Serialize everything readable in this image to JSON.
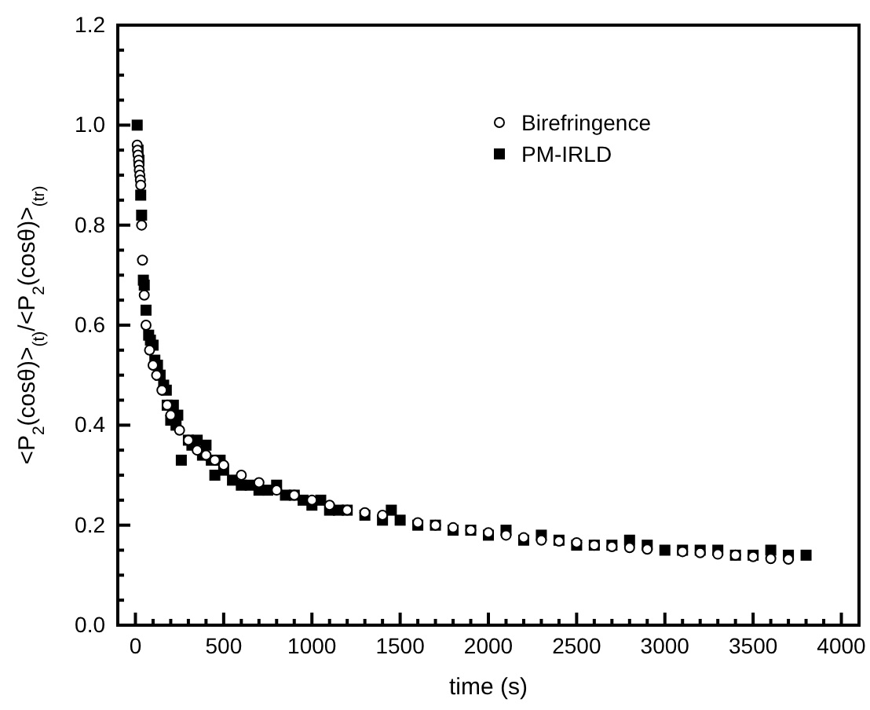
{
  "chart_data": {
    "type": "scatter",
    "xlabel": "time (s)",
    "ylabel": "<P$_{2}$(cosθ)>$_{(t)}$/<P$_{2}$(cosθ)>$_{(tr)}$",
    "xlim": [
      -100,
      4100
    ],
    "ylim": [
      0,
      1.2
    ],
    "xticks": [
      0,
      {
        "value": 100,
        "label": null
      },
      {
        "value": 200,
        "label": null
      },
      {
        "value": 300,
        "label": null
      },
      {
        "value": 400,
        "label": null
      },
      500,
      {
        "value": 600,
        "label": null
      },
      {
        "value": 700,
        "label": null
      },
      {
        "value": 800,
        "label": null
      },
      {
        "value": 900,
        "label": null
      },
      1000,
      {
        "value": 1100,
        "label": null
      },
      {
        "value": 1200,
        "label": null
      },
      {
        "value": 1300,
        "label": null
      },
      {
        "value": 1400,
        "label": null
      },
      1500,
      {
        "value": 1600,
        "label": null
      },
      {
        "value": 1700,
        "label": null
      },
      {
        "value": 1800,
        "label": null
      },
      {
        "value": 1900,
        "label": null
      },
      2000,
      {
        "value": 2100,
        "label": null
      },
      {
        "value": 2200,
        "label": null
      },
      {
        "value": 2300,
        "label": null
      },
      {
        "value": 2400,
        "label": null
      },
      2500,
      {
        "value": 2600,
        "label": null
      },
      {
        "value": 2700,
        "label": null
      },
      {
        "value": 2800,
        "label": null
      },
      {
        "value": 2900,
        "label": null
      },
      3000,
      {
        "value": 3100,
        "label": null
      },
      {
        "value": 3200,
        "label": null
      },
      {
        "value": 3300,
        "label": null
      },
      {
        "value": 3400,
        "label": null
      },
      3500,
      {
        "value": 3600,
        "label": null
      },
      {
        "value": 3700,
        "label": null
      },
      {
        "value": 3800,
        "label": null
      },
      {
        "value": 3900,
        "label": null
      },
      4000
    ],
    "yticks": [
      {
        "value": 0,
        "label": "0.0"
      },
      {
        "value": 0.05,
        "label": null
      },
      {
        "value": 0.1,
        "label": null
      },
      {
        "value": 0.15,
        "label": null
      },
      0.2,
      {
        "value": 0.25,
        "label": null
      },
      {
        "value": 0.3,
        "label": null
      },
      {
        "value": 0.35,
        "label": null
      },
      0.4,
      {
        "value": 0.45,
        "label": null
      },
      {
        "value": 0.5,
        "label": null
      },
      {
        "value": 0.55,
        "label": null
      },
      0.6,
      {
        "value": 0.65,
        "label": null
      },
      {
        "value": 0.7,
        "label": null
      },
      {
        "value": 0.75,
        "label": null
      },
      0.8,
      {
        "value": 0.85,
        "label": null
      },
      {
        "value": 0.9,
        "label": null
      },
      {
        "value": 0.95,
        "label": null
      },
      {
        "value": 1,
        "label": "1.0"
      },
      {
        "value": 1.05,
        "label": null
      },
      {
        "value": 1.1,
        "label": null
      },
      {
        "value": 1.15,
        "label": null
      },
      1.2
    ],
    "legend": "top right",
    "grid": false,
    "series": [
      {
        "name": "Birefringence",
        "color": "#000000",
        "marker": "circle",
        "x": [
          10,
          12,
          15,
          18,
          20,
          22,
          25,
          28,
          30,
          35,
          40,
          50,
          60,
          80,
          100,
          120,
          150,
          180,
          200,
          250,
          300,
          350,
          400,
          450,
          500,
          600,
          700,
          800,
          900,
          1000,
          1100,
          1200,
          1300,
          1400,
          1600,
          1700,
          1800,
          1900,
          2000,
          2100,
          2200,
          2300,
          2400,
          2500,
          2600,
          2700,
          2800,
          2900,
          3100,
          3200,
          3300,
          3400,
          3500,
          3600,
          3700
        ],
        "values": [
          0.96,
          0.95,
          0.94,
          0.93,
          0.92,
          0.91,
          0.9,
          0.89,
          0.88,
          0.8,
          0.73,
          0.66,
          0.6,
          0.55,
          0.52,
          0.5,
          0.47,
          0.44,
          0.42,
          0.39,
          0.37,
          0.35,
          0.34,
          0.33,
          0.32,
          0.3,
          0.285,
          0.27,
          0.26,
          0.25,
          0.24,
          0.23,
          0.225,
          0.22,
          0.205,
          0.2,
          0.195,
          0.19,
          0.185,
          0.18,
          0.175,
          0.17,
          0.168,
          0.165,
          0.16,
          0.157,
          0.155,
          0.152,
          0.147,
          0.145,
          0.142,
          0.14,
          0.137,
          0.133,
          0.132
        ]
      },
      {
        "name": "PM-IRLD",
        "color": "#000000",
        "marker": "square",
        "x": [
          10,
          15,
          20,
          30,
          35,
          45,
          50,
          60,
          75,
          85,
          100,
          110,
          125,
          140,
          160,
          175,
          180,
          200,
          215,
          230,
          240,
          260,
          300,
          320,
          350,
          380,
          400,
          430,
          450,
          480,
          500,
          550,
          600,
          650,
          700,
          750,
          800,
          850,
          900,
          950,
          1000,
          1050,
          1100,
          1150,
          1200,
          1300,
          1400,
          1450,
          1500,
          1600,
          1700,
          1800,
          1900,
          2000,
          2100,
          2200,
          2300,
          2400,
          2500,
          2600,
          2700,
          2800,
          2900,
          3000,
          3100,
          3200,
          3300,
          3400,
          3500,
          3600,
          3700,
          3800
        ],
        "values": [
          1.0,
          0.95,
          0.93,
          0.86,
          0.82,
          0.69,
          0.68,
          0.63,
          0.58,
          0.57,
          0.56,
          0.53,
          0.52,
          0.5,
          0.48,
          0.47,
          0.44,
          0.41,
          0.44,
          0.4,
          0.42,
          0.33,
          0.37,
          0.36,
          0.37,
          0.34,
          0.36,
          0.33,
          0.3,
          0.33,
          0.31,
          0.29,
          0.28,
          0.28,
          0.27,
          0.27,
          0.28,
          0.26,
          0.26,
          0.25,
          0.24,
          0.25,
          0.23,
          0.23,
          0.23,
          0.22,
          0.21,
          0.23,
          0.21,
          0.2,
          0.2,
          0.19,
          0.19,
          0.18,
          0.19,
          0.17,
          0.18,
          0.17,
          0.16,
          0.16,
          0.16,
          0.17,
          0.16,
          0.15,
          0.15,
          0.15,
          0.15,
          0.14,
          0.14,
          0.15,
          0.14,
          0.14
        ]
      }
    ]
  }
}
